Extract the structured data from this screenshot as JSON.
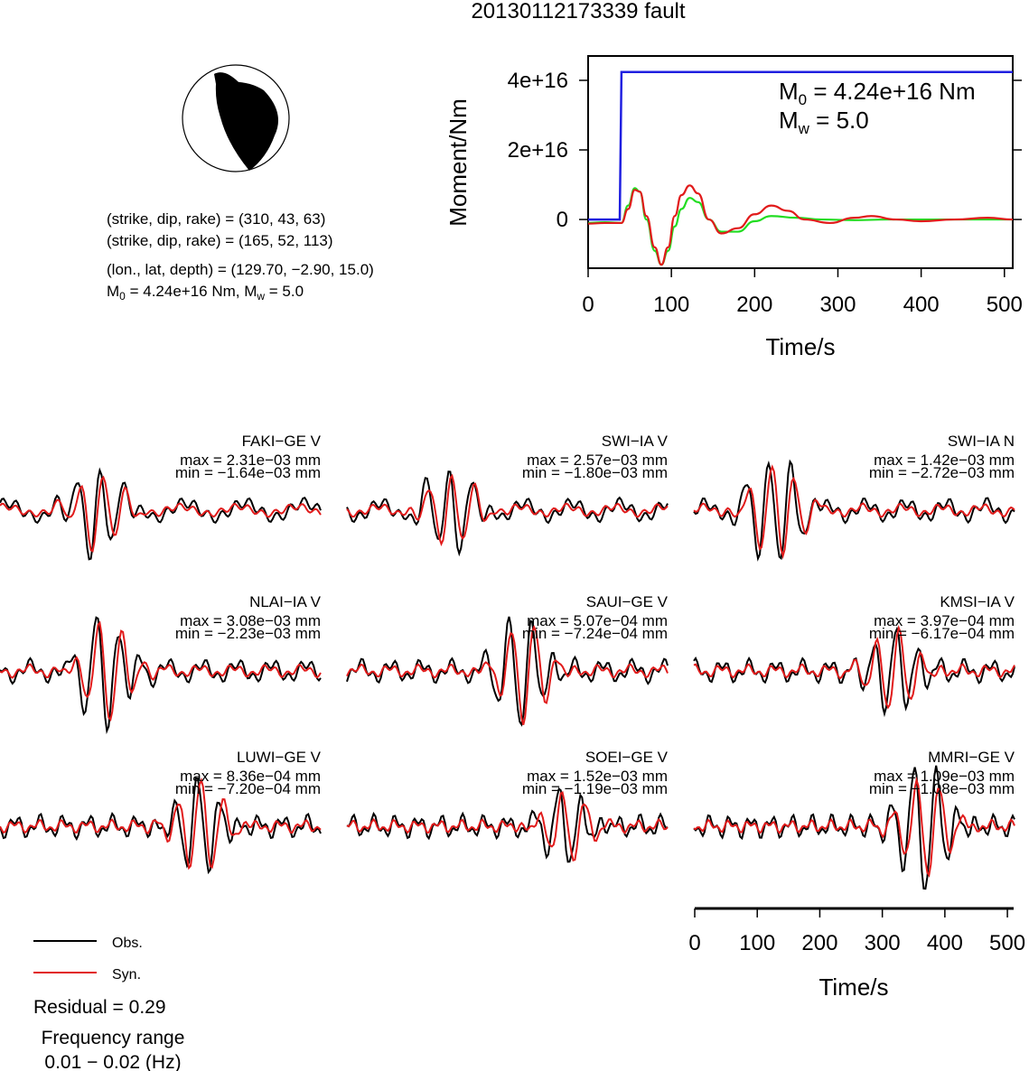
{
  "title": "20130112173339 fault",
  "colors": {
    "obs": "#000000",
    "syn": "#e11b1b",
    "moment": "#1f1fe0",
    "rate_green": "#22dd22",
    "rate_red": "#e11b1b"
  },
  "focal_mechanism": {
    "plane1": "(strike, dip, rake) = (310, 43, 63)",
    "plane2": "(strike, dip, rake) = (165, 52, 113)",
    "location": "(lon., lat, depth) = (129.70, −2.90, 15.0)",
    "moment_prefix": "M",
    "moment_sub": "0",
    "moment_mid": " = 4.24e+16 Nm, M",
    "moment_sub2": "w",
    "moment_end": " = 5.0"
  },
  "moment_panel": {
    "m0_prefix": "M",
    "m0_sub": "0",
    "m0_value": " = 4.24e+16 Nm",
    "mw_prefix": "M",
    "mw_sub": "w",
    "mw_value": " = 5.0"
  },
  "station_traces": [
    {
      "name": "FAKI−GE V",
      "max": "max = 2.31e−03 mm",
      "min": "min = −1.64e−03 mm"
    },
    {
      "name": "SWI−IA V",
      "max": "max = 2.57e−03 mm",
      "min": "min = −1.80e−03 mm"
    },
    {
      "name": "SWI−IA N",
      "max": "max = 1.42e−03 mm",
      "min": "min = −2.72e−03 mm"
    },
    {
      "name": "NLAI−IA V",
      "max": "max = 3.08e−03 mm",
      "min": "min = −2.23e−03 mm"
    },
    {
      "name": "SAUI−GE V",
      "max": "max = 5.07e−04 mm",
      "min": "min = −7.24e−04 mm"
    },
    {
      "name": "KMSI−IA V",
      "max": "max = 3.97e−04 mm",
      "min": "min = −6.17e−04 mm"
    },
    {
      "name": "LUWI−GE V",
      "max": "max = 8.36e−04 mm",
      "min": "min = −7.20e−04 mm"
    },
    {
      "name": "SOEI−GE V",
      "max": "max = 1.52e−03 mm",
      "min": "min = −1.19e−03 mm"
    },
    {
      "name": "MMRI−GE V",
      "max": "max = 1.09e−03 mm",
      "min": "min = −1.08e−03 mm"
    }
  ],
  "legend": {
    "obs": "Obs.",
    "syn": "Syn."
  },
  "residual": "Residual = 0.29",
  "frequency_label": "Frequency range",
  "frequency_value": "0.01 − 0.02 (Hz)",
  "chart_data": [
    {
      "type": "line",
      "title": "",
      "xlabel": "Time/s",
      "ylabel": "Moment/Nm",
      "xlim": [
        0,
        510
      ],
      "ylim": [
        -1.4e+16,
        4.7e+16
      ],
      "xticks": [
        0,
        100,
        200,
        300,
        400,
        500
      ],
      "xtick_labels": [
        "0",
        "100",
        "200",
        "300",
        "400",
        "500"
      ],
      "yticks": [
        0,
        2e+16,
        4e+16
      ],
      "ytick_labels": [
        "0",
        "2e+16",
        "4e+16"
      ],
      "series": [
        {
          "color": "#1f1fe0",
          "x": [
            0,
            38,
            40,
            510
          ],
          "y": [
            0,
            0,
            4.24e+16,
            4.24e+16
          ]
        },
        {
          "color": "#22dd22",
          "x": [
            0,
            20,
            40,
            48,
            56,
            62,
            70,
            80,
            88,
            96,
            104,
            112,
            122,
            132,
            145,
            160,
            180,
            200,
            220,
            250,
            280,
            320,
            360,
            400,
            450,
            510
          ],
          "y": [
            -1000000000000000.0,
            -800000000000000.0,
            -1000000000000000.0,
            4000000000000000.0,
            9000000000000000.0,
            8000000000000000.0,
            0.0,
            -9000000000000000.0,
            -1.3e+16,
            -9000000000000000.0,
            -2000000000000000.0,
            3000000000000000.0,
            6200000000000000.0,
            5000000000000000.0,
            0.0,
            -3500000000000000.0,
            -3500000000000000.0,
            -500000000000000.0,
            1000000000000000.0,
            500000000000000.0,
            0.0,
            -200000000000000.0,
            0.0,
            0.0,
            0.0,
            0.0
          ]
        },
        {
          "color": "#e11b1b",
          "x": [
            0,
            20,
            40,
            48,
            56,
            62,
            70,
            80,
            88,
            96,
            104,
            112,
            122,
            132,
            145,
            160,
            180,
            200,
            220,
            240,
            260,
            290,
            320,
            340,
            370,
            400,
            440,
            480,
            510
          ],
          "y": [
            -1200000000000000.0,
            -1000000000000000.0,
            -1000000000000000.0,
            3000000000000000.0,
            8500000000000000.0,
            8000000000000000.0,
            1000000000000000.0,
            -8000000000000000.0,
            -1.3e+16,
            -8000000000000000.0,
            1000000000000000.0,
            7000000000000000.0,
            9800000000000000.0,
            7500000000000000.0,
            0.0,
            -4000000000000000.0,
            -2500000000000000.0,
            1500000000000000.0,
            4000000000000000.0,
            2500000000000000.0,
            0.0,
            -1000000000000000.0,
            500000000000000.0,
            1000000000000000.0,
            0.0,
            -500000000000000.0,
            0.0,
            500000000000000.0,
            0.0
          ]
        }
      ]
    },
    {
      "type": "line",
      "xlabel": "Time/s",
      "xlim": [
        0,
        510
      ],
      "xticks": [
        0,
        100,
        200,
        300,
        400,
        500
      ],
      "xtick_labels": [
        "0",
        "100",
        "200",
        "300",
        "400",
        "500"
      ],
      "note": "shared time axis for the 3x3 waveform grid"
    }
  ]
}
